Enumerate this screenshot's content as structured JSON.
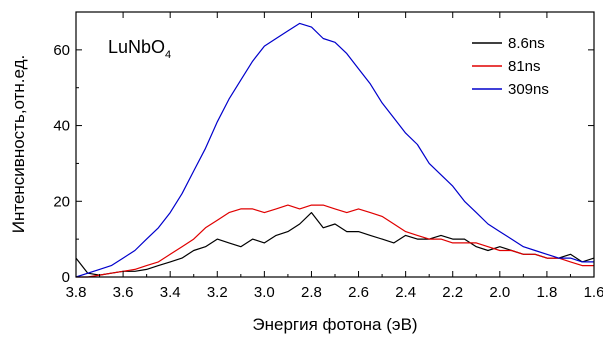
{
  "chart_data": {
    "type": "line",
    "annotation": {
      "main": "LuNbO",
      "subscript": "4"
    },
    "xlabel": "Энергия фотона (эВ)",
    "ylabel": "Интенсивность,отн.ед.",
    "xlim": [
      3.8,
      1.6
    ],
    "ylim": [
      0,
      70
    ],
    "x_ticks": [
      "3.8",
      "3.6",
      "3.4",
      "3.2",
      "3.0",
      "2.8",
      "2.6",
      "2.4",
      "2.2",
      "2.0",
      "1.8",
      "1.6"
    ],
    "x_tick_values": [
      3.8,
      3.6,
      3.4,
      3.2,
      3.0,
      2.8,
      2.6,
      2.4,
      2.2,
      2.0,
      1.8,
      1.6
    ],
    "y_ticks": [
      "0",
      "20",
      "40",
      "60"
    ],
    "y_tick_values": [
      0,
      20,
      40,
      60
    ],
    "legend_position": "top-right",
    "series": [
      {
        "name": "8.6ns",
        "color": "#000000",
        "x": [
          3.8,
          3.75,
          3.7,
          3.65,
          3.6,
          3.55,
          3.5,
          3.45,
          3.4,
          3.35,
          3.3,
          3.25,
          3.2,
          3.15,
          3.1,
          3.05,
          3.0,
          2.95,
          2.9,
          2.85,
          2.8,
          2.75,
          2.7,
          2.65,
          2.6,
          2.55,
          2.5,
          2.45,
          2.4,
          2.35,
          2.3,
          2.25,
          2.2,
          2.15,
          2.1,
          2.05,
          2.0,
          1.95,
          1.9,
          1.85,
          1.8,
          1.75,
          1.7,
          1.65,
          1.6
        ],
        "values": [
          5,
          1,
          0.5,
          1,
          1.5,
          1.5,
          2,
          3,
          4,
          5,
          7,
          8,
          10,
          9,
          8,
          10,
          9,
          11,
          12,
          14,
          17,
          13,
          14,
          12,
          12,
          11,
          10,
          9,
          11,
          10,
          10,
          11,
          10,
          10,
          8,
          7,
          8,
          7,
          6,
          6,
          5,
          5,
          6,
          4,
          5
        ]
      },
      {
        "name": "81ns",
        "color": "#e00000",
        "x": [
          3.8,
          3.75,
          3.7,
          3.65,
          3.6,
          3.55,
          3.5,
          3.45,
          3.4,
          3.35,
          3.3,
          3.25,
          3.2,
          3.15,
          3.1,
          3.05,
          3.0,
          2.95,
          2.9,
          2.85,
          2.8,
          2.75,
          2.7,
          2.65,
          2.6,
          2.55,
          2.5,
          2.45,
          2.4,
          2.35,
          2.3,
          2.25,
          2.2,
          2.15,
          2.1,
          2.05,
          2.0,
          1.95,
          1.9,
          1.85,
          1.8,
          1.75,
          1.7,
          1.65,
          1.6
        ],
        "values": [
          0,
          0,
          0.5,
          1,
          1.5,
          2,
          3,
          4,
          6,
          8,
          10,
          13,
          15,
          17,
          18,
          18,
          17,
          18,
          19,
          18,
          19,
          19,
          18,
          17,
          18,
          17,
          16,
          14,
          12,
          11,
          10,
          10,
          9,
          9,
          9,
          8,
          7,
          7,
          6,
          6,
          5,
          5,
          4,
          3,
          3
        ]
      },
      {
        "name": "309ns",
        "color": "#0000cc",
        "x": [
          3.8,
          3.75,
          3.7,
          3.65,
          3.6,
          3.55,
          3.5,
          3.45,
          3.4,
          3.35,
          3.3,
          3.25,
          3.2,
          3.15,
          3.1,
          3.05,
          3.0,
          2.95,
          2.9,
          2.85,
          2.8,
          2.75,
          2.7,
          2.65,
          2.6,
          2.55,
          2.5,
          2.45,
          2.4,
          2.35,
          2.3,
          2.25,
          2.2,
          2.15,
          2.1,
          2.05,
          2.0,
          1.95,
          1.9,
          1.85,
          1.8,
          1.75,
          1.7,
          1.65,
          1.6
        ],
        "values": [
          0,
          1,
          2,
          3,
          5,
          7,
          10,
          13,
          17,
          22,
          28,
          34,
          41,
          47,
          52,
          57,
          61,
          63,
          65,
          67,
          66,
          63,
          62,
          59,
          55,
          51,
          46,
          42,
          38,
          35,
          30,
          27,
          24,
          20,
          17,
          14,
          12,
          10,
          8,
          7,
          6,
          5,
          5,
          4,
          4
        ]
      }
    ]
  }
}
